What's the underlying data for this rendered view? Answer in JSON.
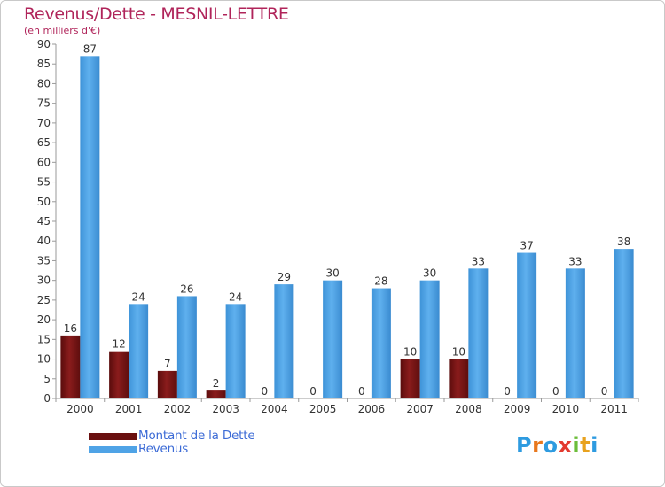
{
  "chart_data": {
    "type": "bar",
    "title": "Revenus/Dette - MESNIL-LETTRE",
    "subtitle": "(en milliers d'€)",
    "categories": [
      "2000",
      "2001",
      "2002",
      "2003",
      "2004",
      "2005",
      "2006",
      "2007",
      "2008",
      "2009",
      "2010",
      "2011"
    ],
    "series": [
      {
        "name": "Montant de la Dette",
        "color": "#7a1414",
        "values": [
          16,
          12,
          7,
          2,
          0,
          0,
          0,
          10,
          10,
          0,
          0,
          0
        ]
      },
      {
        "name": "Revenus",
        "color": "#4fa3e6",
        "values": [
          87,
          24,
          26,
          24,
          29,
          30,
          28,
          30,
          33,
          37,
          33,
          38
        ]
      }
    ],
    "ylim": [
      0,
      90
    ],
    "yticks": [
      0,
      5,
      10,
      15,
      20,
      25,
      30,
      35,
      40,
      45,
      50,
      55,
      60,
      65,
      70,
      75,
      80,
      85,
      90
    ],
    "xlabel": "",
    "ylabel": "",
    "grid": false,
    "legend_position": "bottom-left"
  },
  "logo": {
    "letters": [
      "P",
      "r",
      "o",
      "x",
      "i",
      "t",
      "i"
    ],
    "colors": [
      "#2e9be0",
      "#e8781e",
      "#2e9be0",
      "#e33a30",
      "#6cbd3a",
      "#e8a21e",
      "#2e9be0"
    ]
  }
}
